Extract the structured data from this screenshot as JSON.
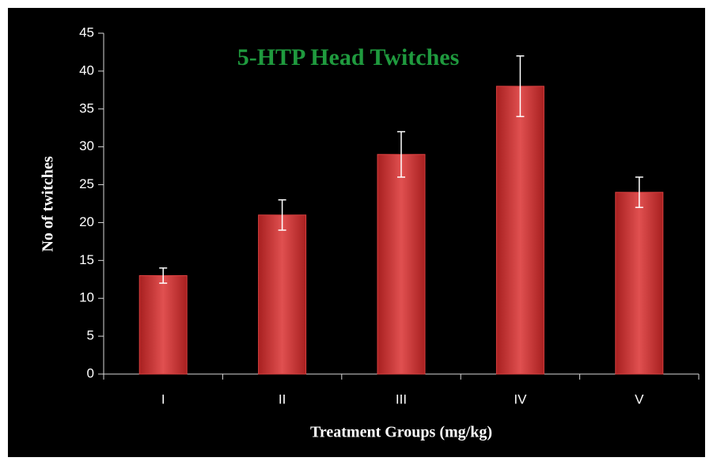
{
  "chart_data": {
    "type": "bar",
    "title": "5-HTP Head Twitches",
    "x_label": "Treatment Groups (mg/kg)",
    "y_label": "No of twitches",
    "categories": [
      "I",
      "II",
      "III",
      "IV",
      "V"
    ],
    "values": [
      13,
      21,
      29,
      38,
      24
    ],
    "errors": [
      1,
      2,
      3,
      4,
      2
    ],
    "color": "#d94040",
    "ylim": [
      0,
      45
    ],
    "yticks": [
      0,
      5,
      10,
      15,
      20,
      25,
      30,
      35,
      40,
      45
    ],
    "grid": false
  }
}
